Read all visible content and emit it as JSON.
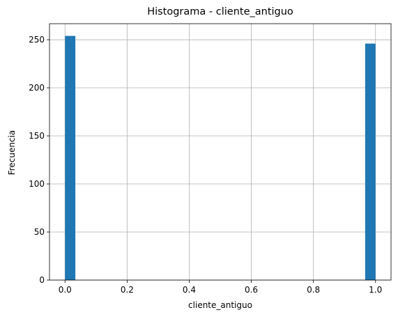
{
  "chart_data": {
    "type": "bar",
    "title": "Histograma - cliente_antiguo",
    "xlabel": "cliente_antiguo",
    "ylabel": "Frecuencia",
    "bins": 30,
    "bin_range": [
      0,
      1
    ],
    "bars": [
      {
        "x_start": 0.0,
        "x_end": 0.0333,
        "count": 254
      },
      {
        "x_start": 0.9667,
        "x_end": 1.0,
        "count": 246
      }
    ],
    "xlim": [
      -0.05,
      1.05
    ],
    "ylim": [
      0,
      266.7
    ],
    "x_ticks": [
      {
        "value": 0.0,
        "label": "0.0"
      },
      {
        "value": 0.2,
        "label": "0.2"
      },
      {
        "value": 0.4,
        "label": "0.4"
      },
      {
        "value": 0.6,
        "label": "0.6"
      },
      {
        "value": 0.8,
        "label": "0.8"
      },
      {
        "value": 1.0,
        "label": "1.0"
      }
    ],
    "y_ticks": [
      {
        "value": 0,
        "label": "0"
      },
      {
        "value": 50,
        "label": "50"
      },
      {
        "value": 100,
        "label": "100"
      },
      {
        "value": 150,
        "label": "150"
      },
      {
        "value": 200,
        "label": "200"
      },
      {
        "value": 250,
        "label": "250"
      }
    ],
    "grid": true,
    "bar_color": "#1f77b4",
    "grid_color": "#b0b0b0"
  }
}
